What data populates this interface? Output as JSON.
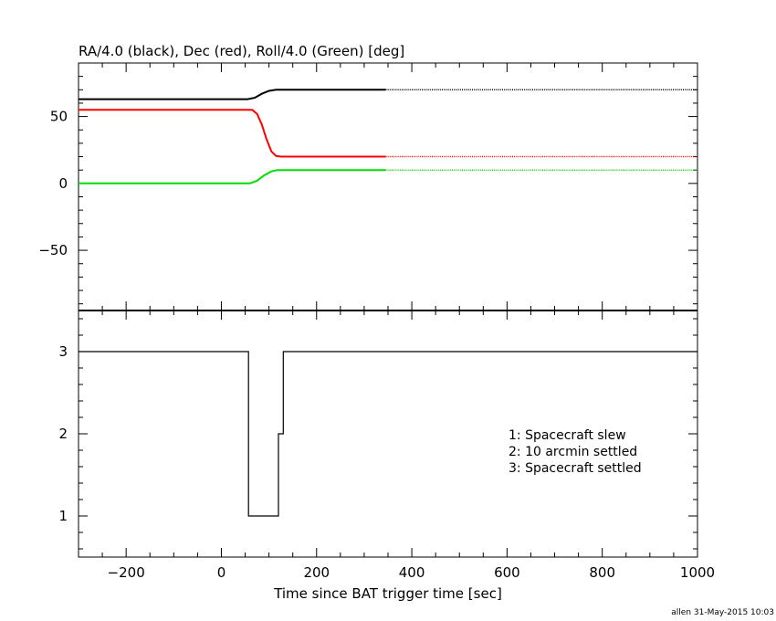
{
  "chart_data": [
    {
      "type": "line",
      "title": "RA/4.0 (black), Dec (red), Roll/4.0 (Green) [deg]",
      "xlim": [
        -300,
        1000
      ],
      "ylim": [
        -95,
        90
      ],
      "yticks": [
        {
          "value": 50,
          "label": "50"
        },
        {
          "value": 0,
          "label": "0"
        },
        {
          "value": -50,
          "label": "−50"
        }
      ],
      "series": [
        {
          "color": "#000000",
          "solid": [
            [
              -300,
              63
            ],
            [
              55,
              63
            ],
            [
              70,
              64
            ],
            [
              85,
              67
            ],
            [
              100,
              69.2
            ],
            [
              115,
              70
            ],
            [
              345,
              70
            ]
          ],
          "dotted": [
            [
              345,
              70
            ],
            [
              1000,
              70
            ]
          ]
        },
        {
          "color": "#ff0000",
          "solid": [
            [
              -300,
              55
            ],
            [
              65,
              55
            ],
            [
              75,
              52
            ],
            [
              85,
              44
            ],
            [
              95,
              33
            ],
            [
              105,
              24
            ],
            [
              115,
              20.5
            ],
            [
              125,
              20
            ],
            [
              345,
              20
            ]
          ],
          "dotted": [
            [
              345,
              20
            ],
            [
              1000,
              20
            ]
          ]
        },
        {
          "color": "#00dd00",
          "solid": [
            [
              -300,
              0
            ],
            [
              60,
              0
            ],
            [
              75,
              2
            ],
            [
              90,
              6
            ],
            [
              105,
              9
            ],
            [
              118,
              10
            ],
            [
              345,
              10
            ]
          ],
          "dotted": [
            [
              345,
              10
            ],
            [
              1000,
              10
            ]
          ]
        }
      ]
    },
    {
      "type": "line",
      "xlabel": "Time since BAT trigger time [sec]",
      "xlim": [
        -300,
        1000
      ],
      "ylim": [
        0.5,
        3.5
      ],
      "xticks": [
        {
          "value": -200,
          "label": "−200"
        },
        {
          "value": 0,
          "label": "0"
        },
        {
          "value": 200,
          "label": "200"
        },
        {
          "value": 400,
          "label": "400"
        },
        {
          "value": 600,
          "label": "600"
        },
        {
          "value": 800,
          "label": "800"
        },
        {
          "value": 1000,
          "label": "1000"
        }
      ],
      "yticks": [
        {
          "value": 3,
          "label": "3"
        },
        {
          "value": 2,
          "label": "2"
        },
        {
          "value": 1,
          "label": "1"
        }
      ],
      "series": [
        {
          "color": "#000000",
          "step": [
            [
              -300,
              3
            ],
            [
              57,
              3
            ],
            [
              57,
              1
            ],
            [
              120,
              1
            ],
            [
              120,
              2
            ],
            [
              130,
              2
            ],
            [
              130,
              3
            ],
            [
              1000,
              3
            ]
          ]
        }
      ],
      "legend": [
        "1: Spacecraft slew",
        "2: 10 arcmin settled",
        "3: Spacecraft settled"
      ]
    }
  ],
  "footer": "allen 31-May-2015 10:03"
}
